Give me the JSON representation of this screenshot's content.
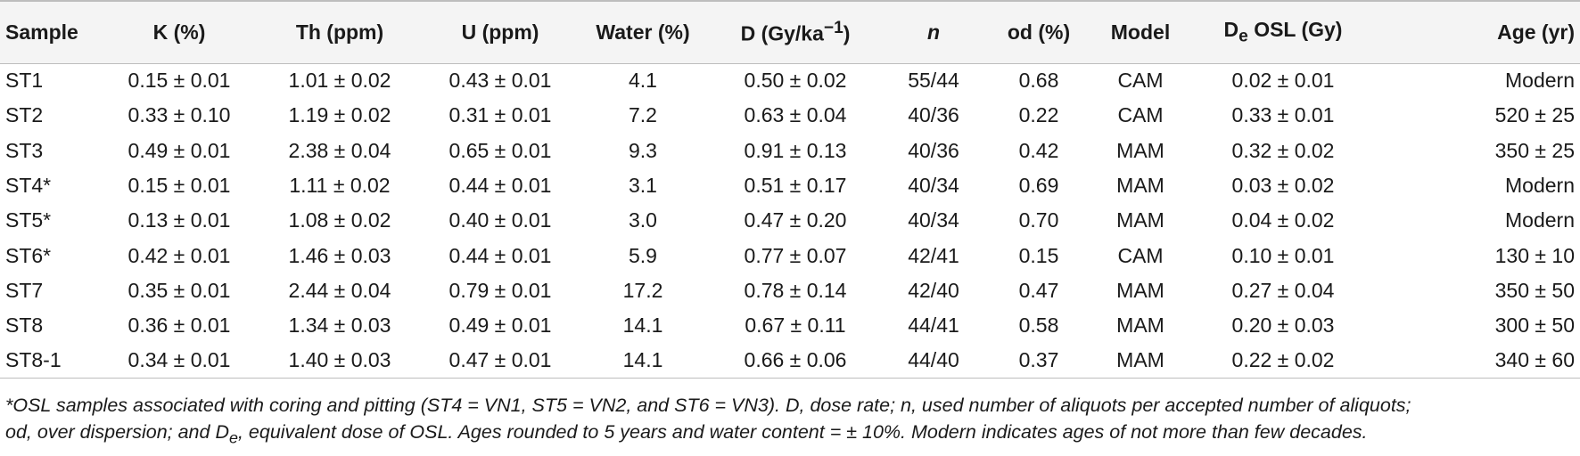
{
  "table": {
    "headers": [
      {
        "main": "Sample"
      },
      {
        "main": "K (%)"
      },
      {
        "main": "Th (ppm)"
      },
      {
        "main": "U (ppm)"
      },
      {
        "main": "Water (%)"
      },
      {
        "main": "D (Gy/ka",
        "sup": "−1",
        "after": ")"
      },
      {
        "main": "n"
      },
      {
        "main": "od (%)"
      },
      {
        "main": "Model"
      },
      {
        "main": "D",
        "sub": "e",
        "after": " OSL (Gy)"
      },
      {
        "main": "Age (yr)"
      }
    ],
    "rows": [
      [
        "ST1",
        "0.15 ± 0.01",
        "1.01 ± 0.02",
        "0.43 ± 0.01",
        "4.1",
        "0.50 ± 0.02",
        "55/44",
        "0.68",
        "CAM",
        "0.02 ± 0.01",
        "Modern"
      ],
      [
        "ST2",
        "0.33 ± 0.10",
        "1.19 ± 0.02",
        "0.31 ± 0.01",
        "7.2",
        "0.63 ± 0.04",
        "40/36",
        "0.22",
        "CAM",
        "0.33 ± 0.01",
        "520 ± 25"
      ],
      [
        "ST3",
        "0.49 ± 0.01",
        "2.38 ± 0.04",
        "0.65 ± 0.01",
        "9.3",
        "0.91 ± 0.13",
        "40/36",
        "0.42",
        "MAM",
        "0.32 ± 0.02",
        "350 ± 25"
      ],
      [
        "ST4*",
        "0.15 ± 0.01",
        "1.11 ± 0.02",
        "0.44 ± 0.01",
        "3.1",
        "0.51 ± 0.17",
        "40/34",
        "0.69",
        "MAM",
        "0.03 ± 0.02",
        "Modern"
      ],
      [
        "ST5*",
        "0.13 ± 0.01",
        "1.08 ± 0.02",
        "0.40 ± 0.01",
        "3.0",
        "0.47 ± 0.20",
        "40/34",
        "0.70",
        "MAM",
        "0.04 ± 0.02",
        "Modern"
      ],
      [
        "ST6*",
        "0.42 ± 0.01",
        "1.46 ± 0.03",
        "0.44 ± 0.01",
        "5.9",
        "0.77 ± 0.07",
        "42/41",
        "0.15",
        "CAM",
        "0.10 ± 0.01",
        "130 ± 10"
      ],
      [
        "ST7",
        "0.35 ± 0.01",
        "2.44 ± 0.04",
        "0.79 ± 0.01",
        "17.2",
        "0.78 ± 0.14",
        "42/40",
        "0.47",
        "MAM",
        "0.27 ± 0.04",
        "350 ± 50"
      ],
      [
        "ST8",
        "0.36 ± 0.01",
        "1.34 ± 0.03",
        "0.49 ± 0.01",
        "14.1",
        "0.67 ± 0.11",
        "44/41",
        "0.58",
        "MAM",
        "0.20 ± 0.03",
        "300 ± 50"
      ],
      [
        "ST8-1",
        "0.34 ± 0.01",
        "1.40 ± 0.03",
        "0.47 ± 0.01",
        "14.1",
        "0.66 ± 0.06",
        "44/40",
        "0.37",
        "MAM",
        "0.22 ± 0.02",
        "340 ± 60"
      ]
    ]
  },
  "footnote": {
    "line1": "*OSL samples associated with coring and pitting (ST4 = VN1, ST5 = VN2, and ST6 = VN3). D, dose rate; n, used number of aliquots per accepted number of aliquots;",
    "line2_pre": "od, over dispersion; and D",
    "line2_sub": "e",
    "line2_post": ", equivalent dose of OSL. Ages rounded to 5 years and water content = ± 10%. Modern indicates ages of not more than few decades."
  },
  "colors": {
    "header_bg": "#f4f4f4",
    "rule": "#bdbdbd",
    "text": "#1a1a1a"
  }
}
